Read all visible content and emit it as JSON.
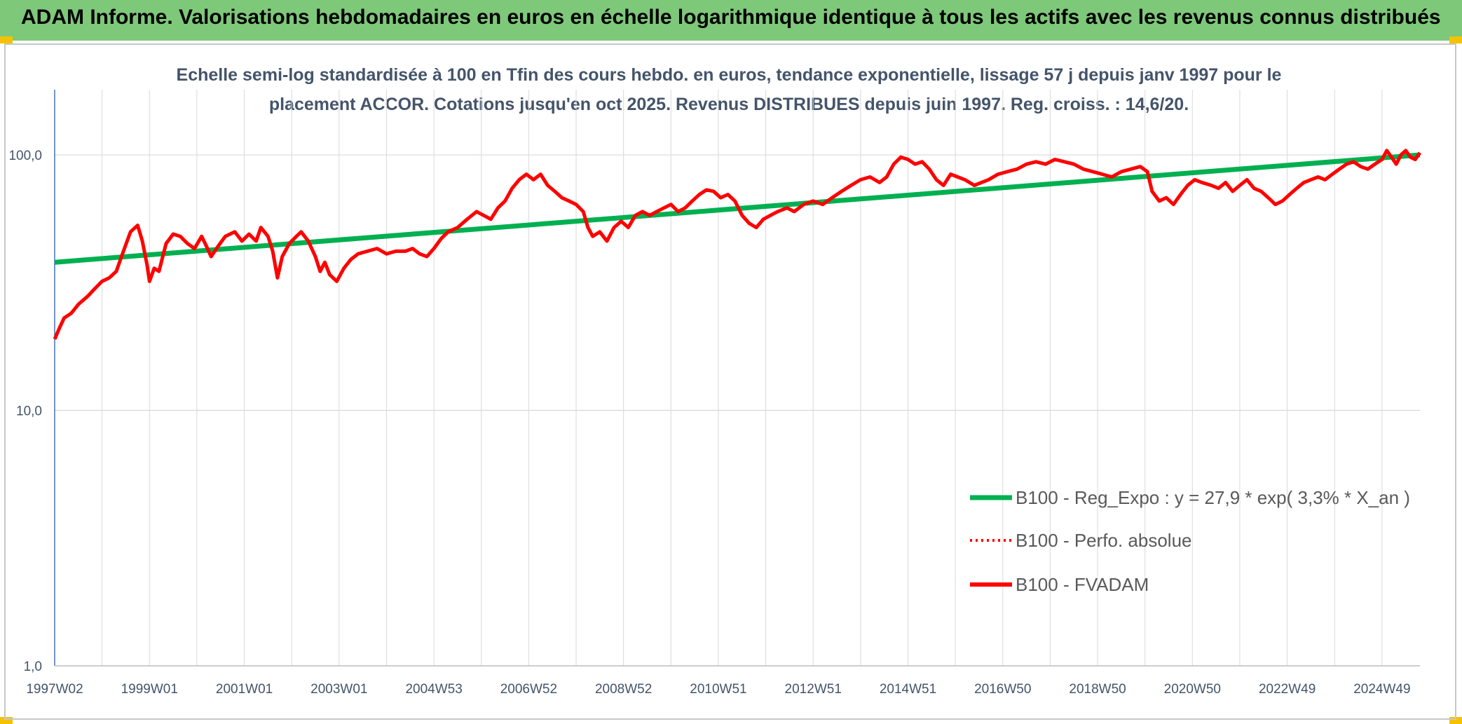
{
  "header": {
    "title": "ADAM Informe. Valorisations hebdomadaires en euros en échelle logarithmique identique à tous les actifs avec les revenus connus distribués"
  },
  "colors": {
    "banner": "#7ec87a",
    "regression": "#00b050",
    "fvadam": "#ff0000",
    "perfo": "#ff0000",
    "axis": "#4472c4",
    "grid": "#d9d9d9"
  },
  "chart_data": {
    "type": "line",
    "title": "Echelle semi-log standardisée à 100 en Tfin des cours hebdo. en euros, tendance exponentielle, lissage 57 j depuis janv 1997 pour le placement ACCOR. Cotations jusqu'en oct 2025. Revenus DISTRIBUES depuis juin 1997. Reg. croiss. : 14,6/20.",
    "y_scale": "log",
    "ylim": [
      1,
      180
    ],
    "y_ticks": [
      {
        "value": 100,
        "label": "100,0"
      },
      {
        "value": 10,
        "label": "10,0"
      },
      {
        "value": 1,
        "label": "1,0"
      }
    ],
    "xlim": [
      1997.0,
      2025.8
    ],
    "x_ticks": [
      {
        "value": 1997.0,
        "label": "1997W02"
      },
      {
        "value": 1999.0,
        "label": "1999W01"
      },
      {
        "value": 2001.0,
        "label": "2001W01"
      },
      {
        "value": 2003.0,
        "label": "2003W01"
      },
      {
        "value": 2005.0,
        "label": "2004W53"
      },
      {
        "value": 2007.0,
        "label": "2006W52"
      },
      {
        "value": 2009.0,
        "label": "2008W52"
      },
      {
        "value": 2011.0,
        "label": "2010W51"
      },
      {
        "value": 2013.0,
        "label": "2012W51"
      },
      {
        "value": 2015.0,
        "label": "2014W51"
      },
      {
        "value": 2017.0,
        "label": "2016W50"
      },
      {
        "value": 2019.0,
        "label": "2018W50"
      },
      {
        "value": 2021.0,
        "label": "2020W50"
      },
      {
        "value": 2023.0,
        "label": "2022W49"
      },
      {
        "value": 2025.0,
        "label": "2024W49"
      }
    ],
    "legend_placement": "bottom-right",
    "grid": true,
    "series": [
      {
        "name": "B100 - Reg_Expo : y = 27,9 * exp( 3,3% * X_an )",
        "style": "solid-thick",
        "points": [
          [
            1997.0,
            38
          ],
          [
            2025.8,
            100
          ]
        ]
      },
      {
        "name": "B100 - Perfo. absolue",
        "style": "dotted",
        "points": []
      },
      {
        "name": "B100 - FVADAM",
        "style": "solid",
        "points": [
          [
            1997.0,
            19
          ],
          [
            1997.1,
            21
          ],
          [
            1997.2,
            23
          ],
          [
            1997.35,
            24
          ],
          [
            1997.5,
            26
          ],
          [
            1997.7,
            28
          ],
          [
            1997.85,
            30
          ],
          [
            1998.0,
            32
          ],
          [
            1998.15,
            33
          ],
          [
            1998.3,
            35
          ],
          [
            1998.45,
            42
          ],
          [
            1998.6,
            50
          ],
          [
            1998.75,
            53
          ],
          [
            1998.85,
            46
          ],
          [
            1998.95,
            37
          ],
          [
            1999.0,
            32
          ],
          [
            1999.1,
            36
          ],
          [
            1999.2,
            35
          ],
          [
            1999.35,
            45
          ],
          [
            1999.5,
            49
          ],
          [
            1999.65,
            48
          ],
          [
            1999.8,
            45
          ],
          [
            1999.95,
            43
          ],
          [
            2000.1,
            48
          ],
          [
            2000.2,
            44
          ],
          [
            2000.3,
            40
          ],
          [
            2000.45,
            44
          ],
          [
            2000.6,
            48
          ],
          [
            2000.8,
            50
          ],
          [
            2000.95,
            46
          ],
          [
            2001.1,
            49
          ],
          [
            2001.25,
            46
          ],
          [
            2001.35,
            52
          ],
          [
            2001.5,
            48
          ],
          [
            2001.6,
            42
          ],
          [
            2001.7,
            33
          ],
          [
            2001.8,
            40
          ],
          [
            2001.95,
            45
          ],
          [
            2002.1,
            48
          ],
          [
            2002.2,
            50
          ],
          [
            2002.35,
            46
          ],
          [
            2002.5,
            40
          ],
          [
            2002.6,
            35
          ],
          [
            2002.7,
            38
          ],
          [
            2002.8,
            34
          ],
          [
            2002.95,
            32
          ],
          [
            2003.1,
            36
          ],
          [
            2003.25,
            39
          ],
          [
            2003.4,
            41
          ],
          [
            2003.6,
            42
          ],
          [
            2003.8,
            43
          ],
          [
            2004.0,
            41
          ],
          [
            2004.2,
            42
          ],
          [
            2004.4,
            42
          ],
          [
            2004.55,
            43
          ],
          [
            2004.7,
            41
          ],
          [
            2004.85,
            40
          ],
          [
            2005.0,
            43
          ],
          [
            2005.15,
            47
          ],
          [
            2005.3,
            50
          ],
          [
            2005.5,
            52
          ],
          [
            2005.7,
            56
          ],
          [
            2005.9,
            60
          ],
          [
            2006.05,
            58
          ],
          [
            2006.2,
            56
          ],
          [
            2006.35,
            62
          ],
          [
            2006.5,
            66
          ],
          [
            2006.65,
            74
          ],
          [
            2006.8,
            80
          ],
          [
            2006.95,
            84
          ],
          [
            2007.1,
            80
          ],
          [
            2007.25,
            84
          ],
          [
            2007.4,
            76
          ],
          [
            2007.55,
            72
          ],
          [
            2007.7,
            68
          ],
          [
            2007.85,
            66
          ],
          [
            2008.0,
            64
          ],
          [
            2008.15,
            60
          ],
          [
            2008.25,
            52
          ],
          [
            2008.35,
            48
          ],
          [
            2008.5,
            50
          ],
          [
            2008.65,
            46
          ],
          [
            2008.8,
            52
          ],
          [
            2008.95,
            55
          ],
          [
            2009.1,
            52
          ],
          [
            2009.25,
            58
          ],
          [
            2009.4,
            60
          ],
          [
            2009.55,
            58
          ],
          [
            2009.7,
            60
          ],
          [
            2009.85,
            62
          ],
          [
            2010.0,
            64
          ],
          [
            2010.15,
            60
          ],
          [
            2010.3,
            62
          ],
          [
            2010.45,
            66
          ],
          [
            2010.6,
            70
          ],
          [
            2010.75,
            73
          ],
          [
            2010.9,
            72
          ],
          [
            2011.05,
            68
          ],
          [
            2011.2,
            70
          ],
          [
            2011.35,
            66
          ],
          [
            2011.5,
            58
          ],
          [
            2011.65,
            54
          ],
          [
            2011.8,
            52
          ],
          [
            2011.95,
            56
          ],
          [
            2012.1,
            58
          ],
          [
            2012.25,
            60
          ],
          [
            2012.45,
            62
          ],
          [
            2012.6,
            60
          ],
          [
            2012.8,
            64
          ],
          [
            2013.0,
            66
          ],
          [
            2013.2,
            64
          ],
          [
            2013.4,
            68
          ],
          [
            2013.6,
            72
          ],
          [
            2013.8,
            76
          ],
          [
            2014.0,
            80
          ],
          [
            2014.2,
            82
          ],
          [
            2014.4,
            78
          ],
          [
            2014.55,
            82
          ],
          [
            2014.7,
            92
          ],
          [
            2014.85,
            98
          ],
          [
            2015.0,
            96
          ],
          [
            2015.15,
            92
          ],
          [
            2015.3,
            94
          ],
          [
            2015.45,
            88
          ],
          [
            2015.6,
            80
          ],
          [
            2015.75,
            76
          ],
          [
            2015.9,
            84
          ],
          [
            2016.05,
            82
          ],
          [
            2016.2,
            80
          ],
          [
            2016.4,
            76
          ],
          [
            2016.55,
            78
          ],
          [
            2016.7,
            80
          ],
          [
            2016.9,
            84
          ],
          [
            2017.1,
            86
          ],
          [
            2017.3,
            88
          ],
          [
            2017.5,
            92
          ],
          [
            2017.7,
            94
          ],
          [
            2017.9,
            92
          ],
          [
            2018.1,
            96
          ],
          [
            2018.3,
            94
          ],
          [
            2018.5,
            92
          ],
          [
            2018.7,
            88
          ],
          [
            2018.9,
            86
          ],
          [
            2019.1,
            84
          ],
          [
            2019.3,
            82
          ],
          [
            2019.5,
            86
          ],
          [
            2019.7,
            88
          ],
          [
            2019.9,
            90
          ],
          [
            2020.05,
            86
          ],
          [
            2020.15,
            72
          ],
          [
            2020.3,
            66
          ],
          [
            2020.45,
            68
          ],
          [
            2020.6,
            64
          ],
          [
            2020.75,
            70
          ],
          [
            2020.9,
            76
          ],
          [
            2021.05,
            80
          ],
          [
            2021.2,
            78
          ],
          [
            2021.4,
            76
          ],
          [
            2021.55,
            74
          ],
          [
            2021.7,
            78
          ],
          [
            2021.85,
            72
          ],
          [
            2022.0,
            76
          ],
          [
            2022.15,
            80
          ],
          [
            2022.3,
            74
          ],
          [
            2022.45,
            72
          ],
          [
            2022.6,
            68
          ],
          [
            2022.75,
            64
          ],
          [
            2022.9,
            66
          ],
          [
            2023.05,
            70
          ],
          [
            2023.2,
            74
          ],
          [
            2023.35,
            78
          ],
          [
            2023.5,
            80
          ],
          [
            2023.65,
            82
          ],
          [
            2023.8,
            80
          ],
          [
            2023.95,
            84
          ],
          [
            2024.1,
            88
          ],
          [
            2024.25,
            92
          ],
          [
            2024.4,
            94
          ],
          [
            2024.55,
            90
          ],
          [
            2024.7,
            88
          ],
          [
            2024.85,
            92
          ],
          [
            2025.0,
            96
          ],
          [
            2025.1,
            104
          ],
          [
            2025.2,
            98
          ],
          [
            2025.3,
            92
          ],
          [
            2025.4,
            100
          ],
          [
            2025.5,
            104
          ],
          [
            2025.6,
            98
          ],
          [
            2025.7,
            96
          ],
          [
            2025.8,
            102
          ]
        ]
      }
    ]
  }
}
